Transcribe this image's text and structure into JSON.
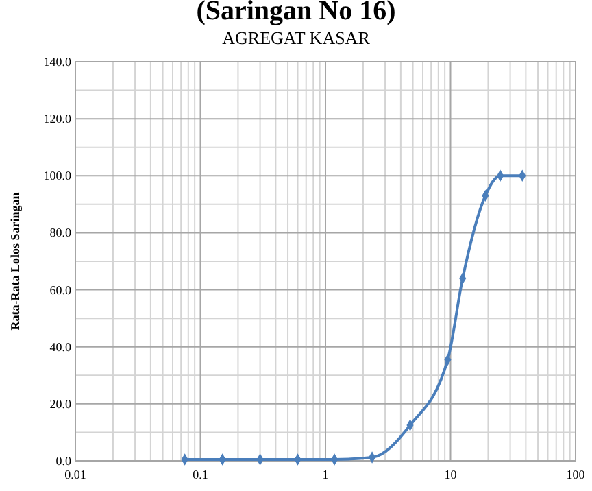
{
  "chart_data": {
    "type": "line",
    "title": "(Saringan No 16)",
    "subtitle": "AGREGAT KASAR",
    "ylabel": "Rata-Rata Lolos Saringan",
    "x": [
      0.075,
      0.15,
      0.3,
      0.6,
      1.18,
      2.36,
      4.75,
      9.5,
      12.5,
      19,
      25,
      37.5
    ],
    "series": [
      {
        "color": "#4a7ebb",
        "values": [
          0.5,
          0.5,
          0.5,
          0.5,
          0.5,
          1.2,
          12.5,
          35.5,
          64,
          93,
          100,
          100
        ]
      }
    ],
    "log": "x",
    "xlim": [
      0.01,
      100
    ],
    "xticks": [
      0.01,
      0.1,
      1,
      10,
      100
    ],
    "ylim": [
      0,
      140
    ],
    "yticks": [
      {
        "value": 0,
        "label": "0.0"
      },
      {
        "value": 20,
        "label": "20.0"
      },
      {
        "value": 40,
        "label": "40.0"
      },
      {
        "value": 60,
        "label": "60.0"
      },
      {
        "value": 80,
        "label": "80.0"
      },
      {
        "value": 100,
        "label": "100.0"
      },
      {
        "value": 120,
        "label": "120.0"
      },
      {
        "value": 140,
        "label": "140.0"
      }
    ],
    "grid": true,
    "marker": "diamond",
    "line_style": "solid"
  }
}
